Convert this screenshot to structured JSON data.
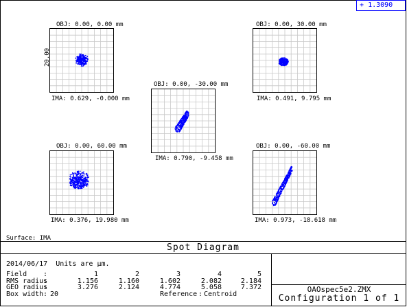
{
  "legend": {
    "marker": "+",
    "value": "1.3090",
    "color": "#0000ff"
  },
  "surface_label": "Surface: IMA",
  "box_label": "20.00",
  "plots": [
    {
      "obj": "OBJ: 0.00, 0.00 mm",
      "ima": "IMA: 0.629, -0.000 mm"
    },
    {
      "obj": "OBJ: 0.00, 30.00 mm",
      "ima": "IMA: 0.491, 9.795 mm"
    },
    {
      "obj": "OBJ: 0.00, -30.00 mm",
      "ima": "IMA: 0.790, -9.458 mm"
    },
    {
      "obj": "OBJ: 0.00, 60.00 mm",
      "ima": "IMA: 0.376, 19.980 mm"
    },
    {
      "obj": "OBJ: 0.00, -60.00 mm",
      "ima": "IMA: 0.973, -18.618 mm"
    }
  ],
  "title": "Spot Diagram",
  "info": {
    "date_units": "2014/06/17  Units are μm."
  },
  "table": {
    "field_label": "Field",
    "fields": [
      "1",
      "2",
      "3",
      "4",
      "5"
    ],
    "rms_label": "RMS radius",
    "rms": [
      "1.156",
      "1.160",
      "1.602",
      "2.082",
      "2.184"
    ],
    "geo_label": "GEO radius",
    "geo": [
      "3.276",
      "2.124",
      "4.774",
      "5.058",
      "7.372"
    ],
    "box_label": "Box width",
    "box_value": "20",
    "reference_label": "Reference",
    "reference_value": "Centroid"
  },
  "file": "OAOspec5e2.ZMX",
  "config": "Configuration 1 of 1"
}
